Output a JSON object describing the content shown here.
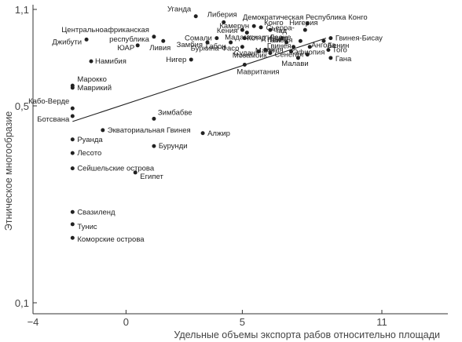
{
  "chart_data": {
    "type": "scatter",
    "xlabel": "Удельные объемы экспорта рабов относительно площади",
    "ylabel": "Этническое многообразие",
    "x_ticks": [
      "−4",
      "0",
      "5",
      "11"
    ],
    "x_tick_values": [
      -4,
      0,
      5,
      11
    ],
    "y_ticks": [
      "0,1",
      "0,5",
      "1,1"
    ],
    "y_tick_values": [
      0.1,
      0.5,
      1.1
    ],
    "xlim": [
      -4,
      11
    ],
    "ylim": [
      0.1,
      1.1
    ],
    "grid": false,
    "trendline": {
      "x": [
        -2.3,
        8.6
      ],
      "y": [
        0.44,
        0.87
      ]
    },
    "points": [
      {
        "name": "Уганда",
        "x": 3.0,
        "y": 1.04
      },
      {
        "name": "Либерия",
        "x": 4.2,
        "y": 0.99
      },
      {
        "name": "Камерун",
        "x": 5.5,
        "y": 0.96
      },
      {
        "name": "Демократическая Республика Конго",
        "x": 7.8,
        "y": 0.98
      },
      {
        "name": "Конго",
        "x": 5.8,
        "y": 0.95
      },
      {
        "name": "Кения",
        "x": 5.0,
        "y": 0.93
      },
      {
        "name": "Чад",
        "x": 6.2,
        "y": 0.93
      },
      {
        "name": "Мадагаскар",
        "x": 5.2,
        "y": 0.91
      },
      {
        "name": "Нигерия",
        "x": 7.7,
        "y": 0.93
      },
      {
        "name": "Центральноафриканская республика",
        "x": 1.2,
        "y": 0.88
      },
      {
        "name": "Сомали",
        "x": 3.9,
        "y": 0.87
      },
      {
        "name": "Кот-д'Ивуар",
        "x": 5.1,
        "y": 0.87
      },
      {
        "name": "Сьерра-Леоне",
        "x": 6.7,
        "y": 0.87
      },
      {
        "name": "Гвинея-Бисау",
        "x": 8.8,
        "y": 0.87
      },
      {
        "name": "Джибути",
        "x": -1.7,
        "y": 0.86
      },
      {
        "name": "Ливия",
        "x": 1.6,
        "y": 0.85
      },
      {
        "name": "Гамбия",
        "x": 7.5,
        "y": 0.85
      },
      {
        "name": "Бенин",
        "x": 8.5,
        "y": 0.85
      },
      {
        "name": "Замбия",
        "x": 3.5,
        "y": 0.84
      },
      {
        "name": "Габон",
        "x": 4.5,
        "y": 0.84
      },
      {
        "name": "Танзания",
        "x": 6.9,
        "y": 0.84
      },
      {
        "name": "ЮАР",
        "x": 0.5,
        "y": 0.82
      },
      {
        "name": "Буркина-Фасо",
        "x": 5.0,
        "y": 0.81
      },
      {
        "name": "Гвинея",
        "x": 7.2,
        "y": 0.81
      },
      {
        "name": "Ангола",
        "x": 7.9,
        "y": 0.81
      },
      {
        "name": "Мали",
        "x": 6.0,
        "y": 0.79
      },
      {
        "name": "Эфиопия",
        "x": 7.1,
        "y": 0.78
      },
      {
        "name": "Того",
        "x": 8.7,
        "y": 0.79
      },
      {
        "name": "Судан",
        "x": 5.7,
        "y": 0.78
      },
      {
        "name": "Мозамбик",
        "x": 6.2,
        "y": 0.77
      },
      {
        "name": "Сенегал",
        "x": 7.8,
        "y": 0.76
      },
      {
        "name": "Гана",
        "x": 8.8,
        "y": 0.74
      },
      {
        "name": "Малави",
        "x": 7.4,
        "y": 0.74
      },
      {
        "name": "Нигер",
        "x": 2.8,
        "y": 0.73
      },
      {
        "name": "Намибия",
        "x": -1.5,
        "y": 0.72
      },
      {
        "name": "Мавритания",
        "x": 5.1,
        "y": 0.7
      },
      {
        "name": "Марокко",
        "x": -2.3,
        "y": 0.59
      },
      {
        "name": "Маврикий",
        "x": -2.3,
        "y": 0.58
      },
      {
        "name": "Кабо-Верде",
        "x": -2.3,
        "y": 0.49
      },
      {
        "name": "Ботсвана",
        "x": -2.3,
        "y": 0.46
      },
      {
        "name": "Зимбабве",
        "x": 1.2,
        "y": 0.45
      },
      {
        "name": "Экваториальная Гвинея",
        "x": -1.0,
        "y": 0.41
      },
      {
        "name": "Алжир",
        "x": 3.3,
        "y": 0.4
      },
      {
        "name": "Руанда",
        "x": -2.3,
        "y": 0.38
      },
      {
        "name": "Бурунди",
        "x": 1.2,
        "y": 0.36
      },
      {
        "name": "Лесото",
        "x": -2.3,
        "y": 0.34
      },
      {
        "name": "Сейшельские острова",
        "x": -2.3,
        "y": 0.3
      },
      {
        "name": "Египет",
        "x": 0.4,
        "y": 0.29
      },
      {
        "name": "Свазиленд",
        "x": -2.3,
        "y": 0.21
      },
      {
        "name": "Тунис",
        "x": -2.3,
        "y": 0.19
      },
      {
        "name": "Коморские острова",
        "x": -2.3,
        "y": 0.17
      }
    ]
  }
}
